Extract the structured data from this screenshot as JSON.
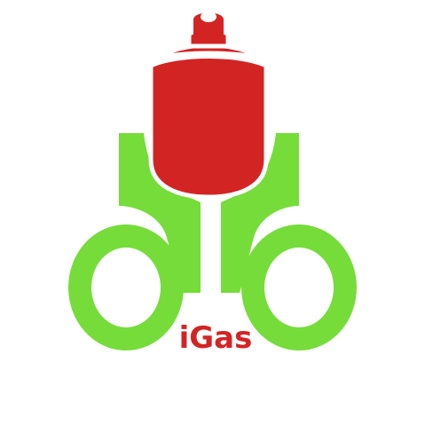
{
  "logo": {
    "brand_name": "iGas",
    "colors": {
      "green": "#76DC3A",
      "red": "#D32424",
      "outline": "#FFFFFF",
      "text": "#D32424",
      "background": "#FFFFFF"
    },
    "icons": [
      "gas-canister-icon",
      "left-ring-icon",
      "right-ring-icon",
      "left-bracket-icon",
      "right-bracket-icon"
    ]
  }
}
